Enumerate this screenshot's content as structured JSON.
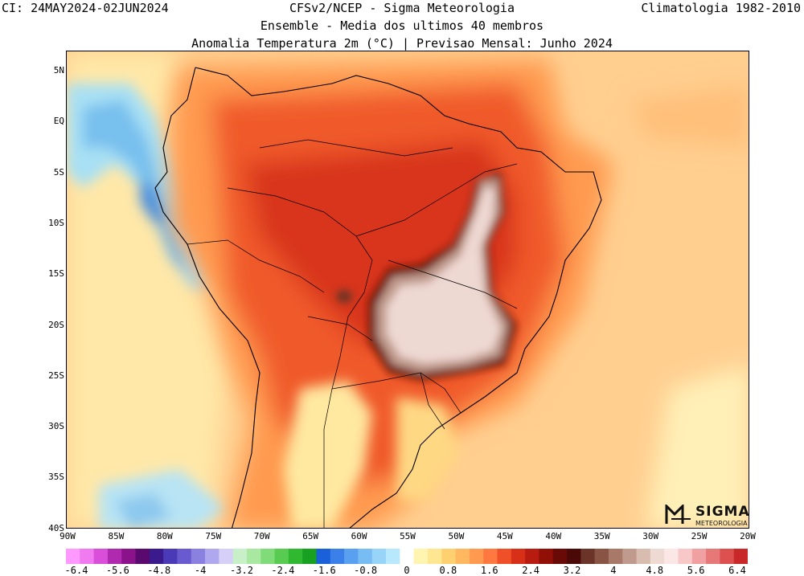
{
  "header": {
    "left": "CI: 24MAY2024-02JUN2024",
    "right": "Climatologia 1982-2010",
    "line1": "CFSv2/NCEP - Sigma Meteorologia",
    "line2": "Ensemble - Media dos ultimos 40 membros",
    "line3": "Anomalia Temperatura 2m (°C) | Previsao Mensal: Junho 2024"
  },
  "map": {
    "lat_labels": [
      "5N",
      "EQ",
      "5S",
      "10S",
      "15S",
      "20S",
      "25S",
      "30S",
      "35S",
      "40S"
    ],
    "lon_labels": [
      "90W",
      "85W",
      "80W",
      "75W",
      "70W",
      "65W",
      "60W",
      "55W",
      "50W",
      "45W",
      "40W",
      "35W",
      "30W",
      "25W",
      "20W"
    ],
    "lat_range": [
      -40,
      5
    ],
    "lon_range": [
      -90,
      -20
    ]
  },
  "legend": {
    "labels": [
      "-6.4",
      "-5.6",
      "-4.8",
      "-4",
      "-3.2",
      "-2.4",
      "-1.6",
      "-0.8",
      "0",
      "0.8",
      "1.6",
      "2.4",
      "3.2",
      "4",
      "4.8",
      "5.6",
      "6.4"
    ],
    "colors": [
      "#ff99ff",
      "#f07af0",
      "#d94fd9",
      "#b02ab0",
      "#8a128a",
      "#5a0a6e",
      "#3a1a8c",
      "#4a3ab8",
      "#6a5ad0",
      "#8a80e0",
      "#b0a8ee",
      "#d6d0f8",
      "#c8f0c8",
      "#a8e8a0",
      "#80dc78",
      "#58cc50",
      "#30b830",
      "#18a020",
      "#1a60d8",
      "#3a80e8",
      "#5aa0f0",
      "#78bcf4",
      "#98d4f8",
      "#b8e8fc",
      "#ffffff",
      "#fff4b0",
      "#ffe690",
      "#ffd070",
      "#ffb860",
      "#ff9a50",
      "#ff7840",
      "#f05028",
      "#d83018",
      "#b81c10",
      "#901008",
      "#6a0a06",
      "#4a0806",
      "#6a3428",
      "#8a5444",
      "#a87868",
      "#c09a8c",
      "#d8bcb0",
      "#eedad2",
      "#fbe8e6",
      "#f8c8c8",
      "#f0a0a0",
      "#e67878",
      "#dc5050",
      "#c82828"
    ]
  },
  "logo": {
    "name": "SIGMA",
    "sub": "METEOROLOGIA"
  }
}
